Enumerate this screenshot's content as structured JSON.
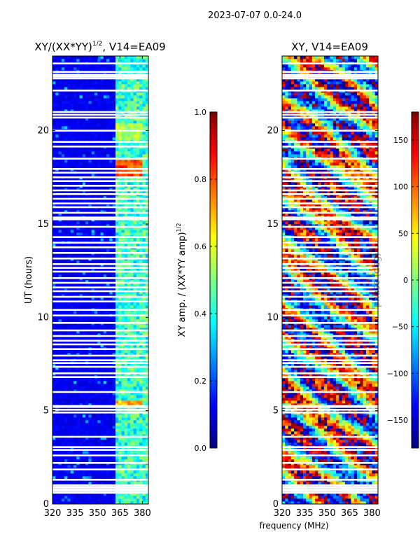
{
  "figure": {
    "suptitle": "2023-07-07 0.0-24.0",
    "xlabel_shared": "frequency (MHz)"
  },
  "chart_data": [
    {
      "type": "heatmap",
      "title_base": "XY/(XX*YY)",
      "title_sup": "1/2",
      "title_suffix": ", V14=EA09",
      "xlabel": "frequency (MHz)",
      "ylabel": "UT (hours)",
      "xlim": [
        320,
        384
      ],
      "ylim": [
        0,
        24
      ],
      "xticks": [
        320,
        335,
        350,
        365,
        380
      ],
      "yticks": [
        0,
        5,
        10,
        15,
        20
      ],
      "colorbar": {
        "label": "XY amp. / (XX*YY amp)",
        "label_sup": "1/2",
        "range": [
          0,
          1
        ],
        "ticks": [
          0.0,
          0.2,
          0.4,
          0.6,
          0.8,
          1.0
        ],
        "tick_labels": [
          "0.0",
          "0.2",
          "0.4",
          "0.6",
          "0.8",
          "1.0"
        ],
        "colormap": "jet"
      },
      "active_bands_mhz": [
        [
          362,
          366.5
        ],
        [
          367,
          370.5
        ],
        [
          371,
          375
        ],
        [
          375.5,
          379.5
        ],
        [
          380,
          384
        ]
      ],
      "high_amplitude_features": [
        {
          "ut_range": [
            17.6,
            18.5
          ],
          "freq_range": [
            362,
            380
          ],
          "amplitude": 0.8
        },
        {
          "ut_range": [
            19.5,
            20.4
          ],
          "freq_range": [
            362,
            380
          ],
          "amplitude": 0.55
        },
        {
          "ut_range": [
            5.3,
            5.6
          ],
          "freq_range": [
            362,
            380
          ],
          "amplitude": 0.7
        }
      ]
    },
    {
      "type": "heatmap",
      "title": "XY, V14=EA09",
      "xlabel": "frequency (MHz)",
      "ylabel": "",
      "xlim": [
        320,
        384
      ],
      "ylim": [
        0,
        24
      ],
      "xticks": [
        320,
        335,
        350,
        365,
        380
      ],
      "yticks": [
        0,
        5,
        10,
        15,
        20
      ],
      "colorbar": {
        "label": "phase (deg)",
        "range": [
          -180,
          180
        ],
        "ticks": [
          -150,
          -100,
          -50,
          0,
          50,
          100,
          150
        ],
        "tick_labels": [
          "−150",
          "−100",
          "−50",
          "0",
          "50",
          "100",
          "150"
        ],
        "colormap": "jet"
      }
    }
  ],
  "flagged_ut_hours": [
    0.6,
    0.7,
    0.8,
    0.9,
    1.0,
    1.3,
    1.85,
    2.2,
    2.6,
    2.9,
    3.05,
    3.6,
    4.9,
    5.05,
    5.2,
    5.25,
    6.0,
    6.8,
    7.0,
    7.35,
    7.55,
    7.7,
    7.95,
    8.3,
    8.55,
    8.75,
    9.0,
    9.3,
    9.7,
    10.1,
    10.4,
    10.85,
    11.1,
    11.4,
    11.6,
    11.85,
    12.1,
    12.45,
    12.65,
    12.85,
    13.15,
    13.45,
    13.75,
    14.0,
    14.3,
    14.85,
    15.25,
    15.35,
    15.6,
    15.9,
    16.1,
    16.35,
    16.6,
    16.8,
    17.05,
    17.3,
    17.5,
    17.75,
    17.95,
    18.5,
    19.15,
    19.4,
    20.0,
    20.7,
    20.85,
    21.0,
    22.15,
    22.8,
    22.9,
    23.0,
    23.15,
    23.6
  ]
}
